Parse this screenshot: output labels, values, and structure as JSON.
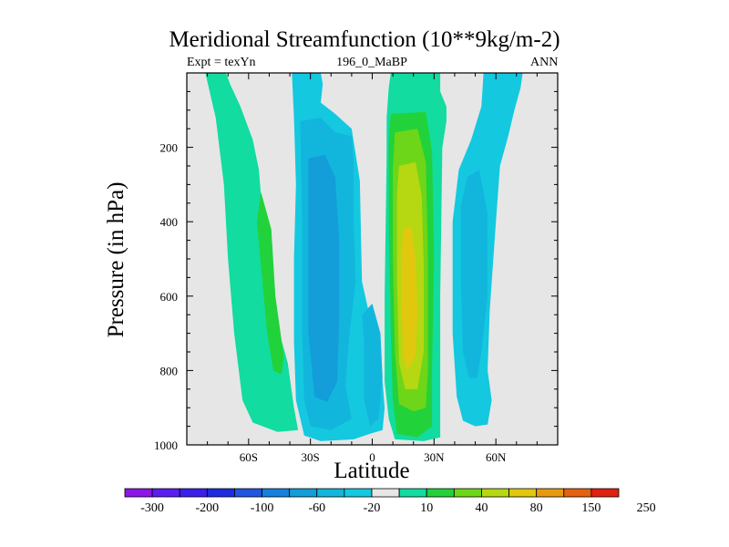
{
  "chart_data": {
    "type": "heatmap",
    "title": "Meridional Streamfunction (10**9kg/m-2)",
    "subtitle_left": "Expt = texYn",
    "subtitle_center": "196_0_MaBP",
    "subtitle_right": "ANN",
    "xlabel": "Latitude",
    "ylabel": "Pressure (in hPa)",
    "xlim": [
      -90,
      90
    ],
    "ylim": [
      0,
      1000
    ],
    "y_reversed": true,
    "xticks": [
      {
        "value": -60,
        "label": "60S"
      },
      {
        "value": -30,
        "label": "30S"
      },
      {
        "value": 0,
        "label": "0"
      },
      {
        "value": 30,
        "label": "30N"
      },
      {
        "value": 60,
        "label": "60N"
      }
    ],
    "yticks": [
      {
        "value": 200,
        "label": "200"
      },
      {
        "value": 400,
        "label": "400"
      },
      {
        "value": 600,
        "label": "600"
      },
      {
        "value": 800,
        "label": "800"
      },
      {
        "value": 1000,
        "label": "1000"
      }
    ],
    "colorbar": {
      "colors": [
        "#8b16e6",
        "#5a1ef0",
        "#3a20ea",
        "#1e2be0",
        "#1f55e1",
        "#1580dd",
        "#139dd9",
        "#12b6dc",
        "#14c8e0",
        "#e6e6e6",
        "#12dca0",
        "#22d23a",
        "#6ed618",
        "#b5d812",
        "#e0c80f",
        "#e79a10",
        "#e5600f",
        "#e02010"
      ],
      "labels": [
        "-300",
        "-200",
        "-100",
        "-60",
        "-20",
        "10",
        "40",
        "80",
        "150",
        "250"
      ]
    },
    "background_color": "#e6e6e6",
    "cells": [
      {
        "lat": -63,
        "p": 500,
        "v": 12
      },
      {
        "lat": -45,
        "p": 650,
        "v": 48
      },
      {
        "lat": -28,
        "p": 520,
        "v": -60
      },
      {
        "lat": -5,
        "p": 850,
        "v": -12
      },
      {
        "lat": 18,
        "p": 650,
        "v": 110
      },
      {
        "lat": 40,
        "p": 600,
        "v": -20
      },
      {
        "lat": 58,
        "p": 500,
        "v": -12
      }
    ]
  }
}
